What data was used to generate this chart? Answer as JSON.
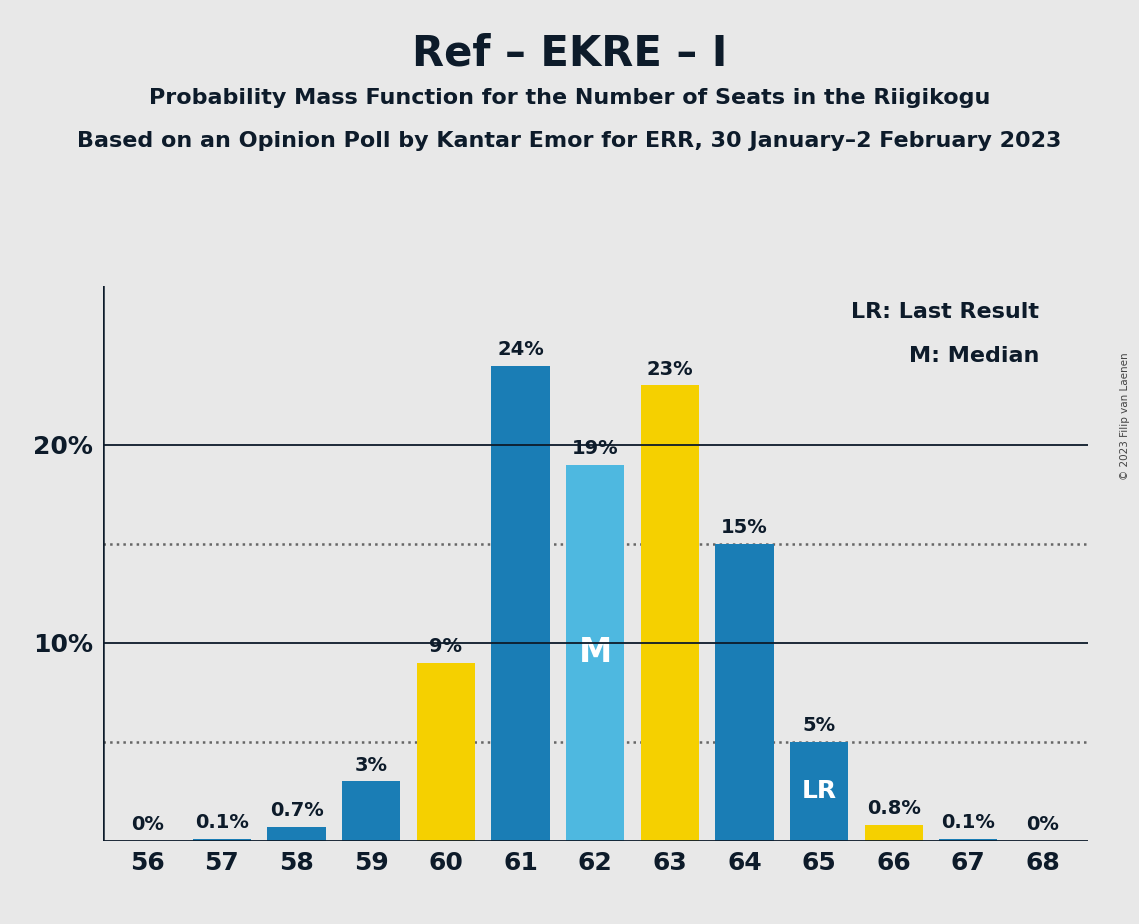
{
  "title": "Ref – EKRE – I",
  "subtitle1": "Probability Mass Function for the Number of Seats in the Riigikogu",
  "subtitle2": "Based on an Opinion Poll by Kantar Emor for ERR, 30 January–2 February 2023",
  "copyright": "© 2023 Filip van Laenen",
  "legend_lr": "LR: Last Result",
  "legend_m": "M: Median",
  "x_values": [
    56,
    57,
    58,
    59,
    60,
    61,
    62,
    63,
    64,
    65,
    66,
    67,
    68
  ],
  "y_values": [
    0.0,
    0.1,
    0.7,
    3.0,
    9.0,
    24.0,
    19.0,
    23.0,
    15.0,
    5.0,
    0.8,
    0.1,
    0.0
  ],
  "bar_labels": [
    "0%",
    "0.1%",
    "0.7%",
    "3%",
    "9%",
    "24%",
    "19%",
    "23%",
    "15%",
    "5%",
    "0.8%",
    "0.1%",
    "0%"
  ],
  "bar_colors": [
    "#1a7db5",
    "#1a7db5",
    "#1a7db5",
    "#1a7db5",
    "#f5d000",
    "#1a7db5",
    "#4eb8e0",
    "#f5d000",
    "#1a7db5",
    "#1a7db5",
    "#f5d000",
    "#1a7db5",
    "#1a7db5"
  ],
  "median_seat": 62,
  "lr_seat": 65,
  "median_label": "M",
  "lr_label": "LR",
  "background_color": "#e8e8e8",
  "dotted_lines": [
    5.0,
    15.0
  ],
  "title_fontsize": 30,
  "subtitle_fontsize": 16,
  "label_fontsize": 14,
  "axis_fontsize": 18,
  "legend_fontsize": 16,
  "text_color": "#0d1b2a"
}
